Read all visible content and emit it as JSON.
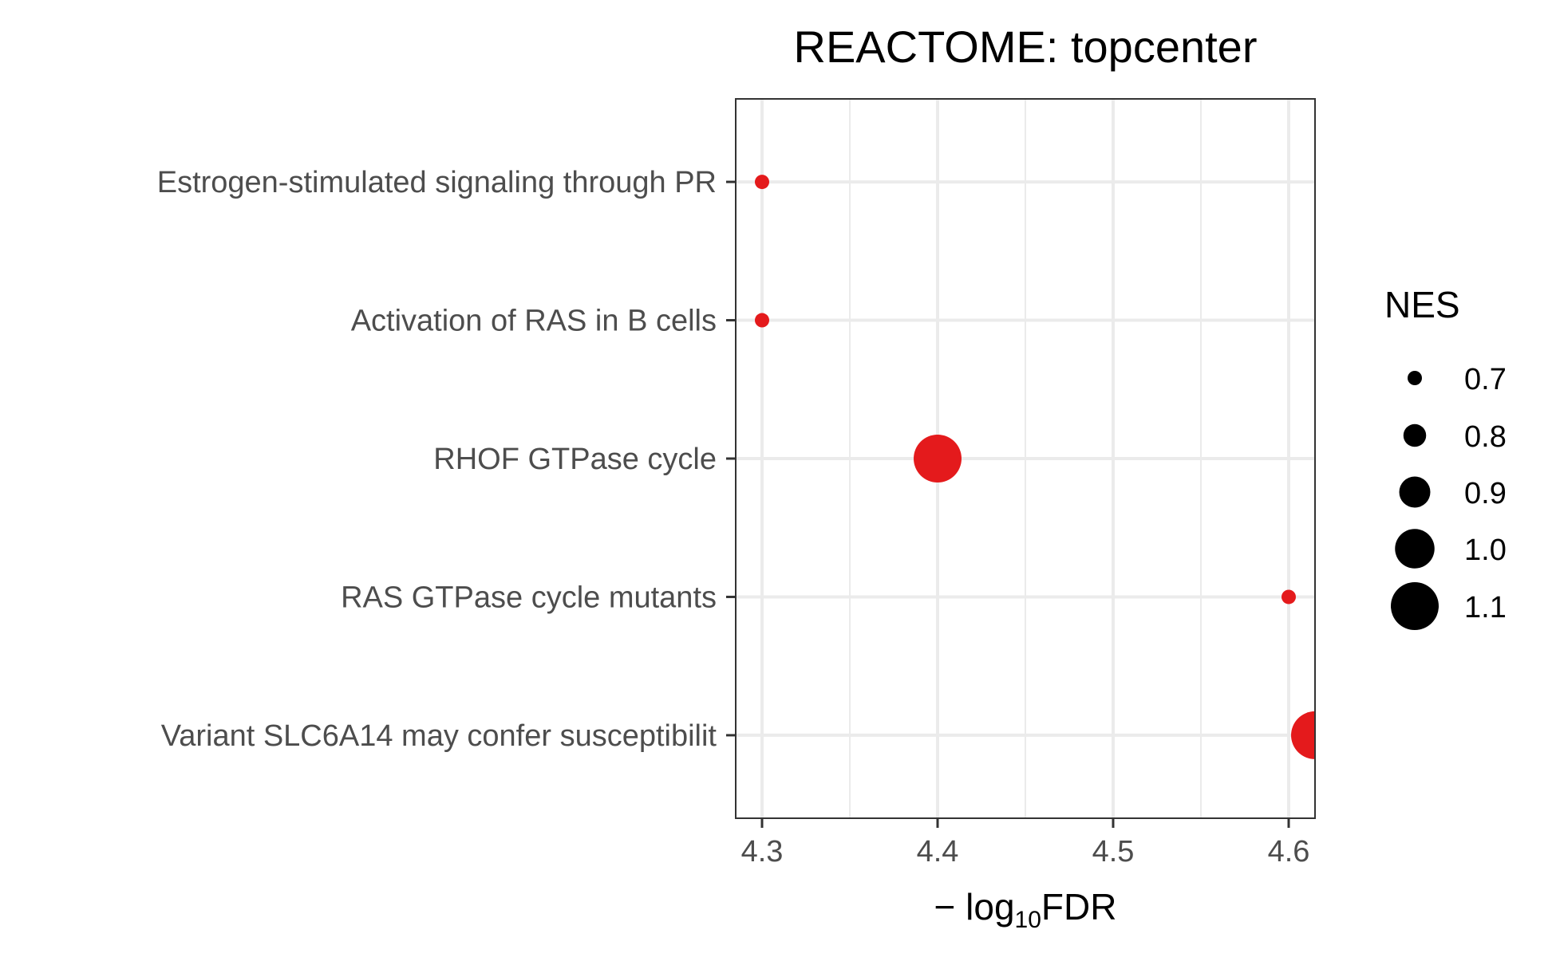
{
  "chart_data": {
    "type": "scatter",
    "title": "REACTOME: topcenter",
    "xlabel": {
      "prefix": "− log",
      "subscript": "10",
      "suffix": "FDR"
    },
    "ylabel": "",
    "xlim": [
      4.285,
      4.615
    ],
    "xticks": [
      4.3,
      4.4,
      4.5,
      4.6
    ],
    "xtick_labels": [
      "4.3",
      "4.4",
      "4.5",
      "4.6"
    ],
    "grid": true,
    "categories": [
      "Estrogen-stimulated signaling through PR",
      "Activation of RAS in B cells",
      "RHOF GTPase cycle",
      "RAS GTPase cycle mutants",
      "Variant SLC6A14 may confer susceptibilit"
    ],
    "points": [
      {
        "category": "Estrogen-stimulated signaling through PR",
        "x": 4.3,
        "nes": 0.7
      },
      {
        "category": "Activation of RAS in B cells",
        "x": 4.3,
        "nes": 0.7
      },
      {
        "category": "RHOF GTPase cycle",
        "x": 4.4,
        "nes": 1.1
      },
      {
        "category": "RAS GTPase cycle mutants",
        "x": 4.6,
        "nes": 0.7
      },
      {
        "category": "Variant SLC6A14 may confer susceptibilit",
        "x": 4.615,
        "nes": 1.1
      }
    ],
    "point_color": "#e41a1c",
    "legend": {
      "title": "NES",
      "position": "right",
      "items": [
        {
          "label": "0.7",
          "value": 0.7
        },
        {
          "label": "0.8",
          "value": 0.8
        },
        {
          "label": "0.9",
          "value": 0.9
        },
        {
          "label": "1.0",
          "value": 1.0
        },
        {
          "label": "1.1",
          "value": 1.1
        }
      ]
    }
  }
}
